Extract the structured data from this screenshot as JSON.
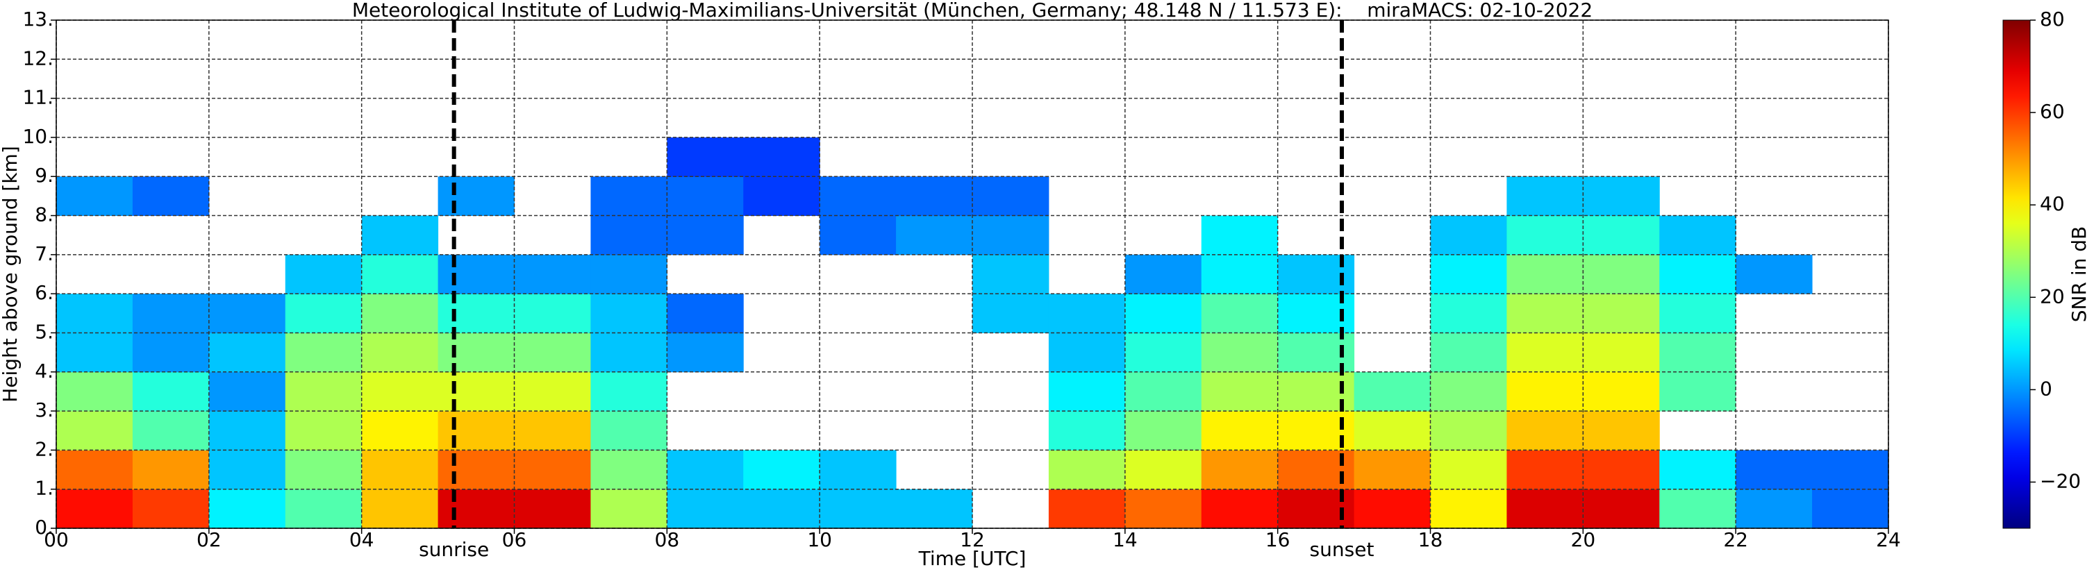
{
  "chart_data": {
    "type": "heatmap",
    "title": "Meteorological Institute of Ludwig-Maximilians-Universität (München, Germany; 48.148 N / 11.573 E):    miraMACS: 02-10-2022",
    "x_label": "Time [UTC]",
    "y_label": "Height above ground [km]",
    "colorbar_label": "SNR in dB",
    "colormap": "jet",
    "grid": true,
    "xlim": [
      0,
      24
    ],
    "ylim": [
      0,
      13
    ],
    "zlim": [
      -30,
      80
    ],
    "xticks": [
      {
        "value": 0,
        "label": "00"
      },
      {
        "value": 2,
        "label": "02"
      },
      {
        "value": 4,
        "label": "04"
      },
      {
        "value": 6,
        "label": "06"
      },
      {
        "value": 8,
        "label": "08"
      },
      {
        "value": 10,
        "label": "10"
      },
      {
        "value": 12,
        "label": "12"
      },
      {
        "value": 14,
        "label": "14"
      },
      {
        "value": 16,
        "label": "16"
      },
      {
        "value": 18,
        "label": "18"
      },
      {
        "value": 20,
        "label": "20"
      },
      {
        "value": 22,
        "label": "22"
      },
      {
        "value": 24,
        "label": "24"
      }
    ],
    "yticks": [
      {
        "value": 0,
        "label": "0."
      },
      {
        "value": 1,
        "label": "1."
      },
      {
        "value": 2,
        "label": "2."
      },
      {
        "value": 3,
        "label": "3."
      },
      {
        "value": 4,
        "label": "4."
      },
      {
        "value": 5,
        "label": "5."
      },
      {
        "value": 6,
        "label": "6."
      },
      {
        "value": 7,
        "label": "7."
      },
      {
        "value": 8,
        "label": "8."
      },
      {
        "value": 9,
        "label": "9."
      },
      {
        "value": 10,
        "label": "10."
      },
      {
        "value": 11,
        "label": "11."
      },
      {
        "value": 12,
        "label": "12."
      },
      {
        "value": 13,
        "label": "13."
      }
    ],
    "zticks": [
      {
        "value": -20,
        "label": "−20"
      },
      0,
      20,
      40,
      60,
      80
    ],
    "vlines": [
      {
        "label": "sunrise",
        "value": 5.21
      },
      {
        "label": "sunset",
        "value": 16.84
      }
    ],
    "xbins": [
      0,
      1,
      2,
      3,
      4,
      5,
      6,
      7,
      8,
      9,
      10,
      11,
      12,
      13,
      14,
      15,
      16,
      17,
      18,
      19,
      20,
      21,
      22,
      23,
      24
    ],
    "ybins": [
      0,
      1,
      2,
      3,
      4,
      5,
      6,
      7,
      8,
      9,
      10,
      11,
      12,
      13
    ],
    "z": [
      [
        65,
        55,
        30,
        25,
        5,
        5,
        null,
        null,
        0,
        null,
        null,
        null,
        null
      ],
      [
        60,
        50,
        20,
        15,
        0,
        0,
        null,
        null,
        -5,
        null,
        null,
        null,
        null
      ],
      [
        10,
        5,
        5,
        0,
        5,
        0,
        null,
        null,
        null,
        null,
        null,
        null,
        null
      ],
      [
        20,
        25,
        30,
        30,
        25,
        15,
        5,
        null,
        null,
        null,
        null,
        null,
        null
      ],
      [
        45,
        45,
        40,
        35,
        30,
        25,
        15,
        5,
        null,
        null,
        null,
        null,
        null
      ],
      [
        70,
        55,
        45,
        35,
        25,
        15,
        0,
        null,
        0,
        null,
        null,
        null,
        null
      ],
      [
        70,
        55,
        45,
        35,
        25,
        15,
        0,
        null,
        null,
        null,
        null,
        null,
        null
      ],
      [
        30,
        25,
        20,
        15,
        5,
        5,
        0,
        -5,
        -5,
        null,
        null,
        null,
        null
      ],
      [
        5,
        5,
        null,
        null,
        0,
        -5,
        null,
        -5,
        -5,
        -10,
        null,
        null,
        null
      ],
      [
        5,
        10,
        null,
        null,
        null,
        null,
        null,
        null,
        -10,
        -10,
        null,
        null,
        null
      ],
      [
        5,
        5,
        null,
        null,
        null,
        null,
        null,
        -5,
        -5,
        null,
        null,
        null,
        null
      ],
      [
        5,
        null,
        null,
        null,
        null,
        null,
        null,
        0,
        -5,
        null,
        null,
        null,
        null
      ],
      [
        null,
        null,
        null,
        null,
        null,
        5,
        5,
        0,
        -5,
        null,
        null,
        null,
        null
      ],
      [
        60,
        30,
        15,
        10,
        5,
        5,
        null,
        null,
        null,
        null,
        null,
        null,
        null
      ],
      [
        55,
        35,
        25,
        20,
        15,
        10,
        0,
        null,
        null,
        null,
        null,
        null,
        null
      ],
      [
        65,
        50,
        40,
        30,
        25,
        20,
        10,
        10,
        null,
        null,
        null,
        null,
        null
      ],
      [
        70,
        55,
        40,
        30,
        20,
        10,
        5,
        null,
        null,
        null,
        null,
        null,
        null
      ],
      [
        65,
        50,
        35,
        20,
        null,
        null,
        null,
        null,
        null,
        null,
        null,
        null,
        null
      ],
      [
        40,
        35,
        30,
        25,
        20,
        15,
        10,
        5,
        null,
        null,
        null,
        null,
        null
      ],
      [
        70,
        60,
        45,
        40,
        35,
        30,
        25,
        15,
        5,
        null,
        null,
        null,
        null
      ],
      [
        70,
        60,
        45,
        40,
        35,
        30,
        25,
        15,
        5,
        null,
        null,
        null,
        null
      ],
      [
        20,
        10,
        null,
        20,
        20,
        15,
        10,
        5,
        null,
        null,
        null,
        null,
        null
      ],
      [
        0,
        -5,
        null,
        null,
        null,
        null,
        0,
        null,
        null,
        null,
        null,
        null,
        null
      ],
      [
        -5,
        -5,
        null,
        null,
        null,
        null,
        null,
        null,
        null,
        null,
        null,
        null,
        null
      ]
    ]
  }
}
